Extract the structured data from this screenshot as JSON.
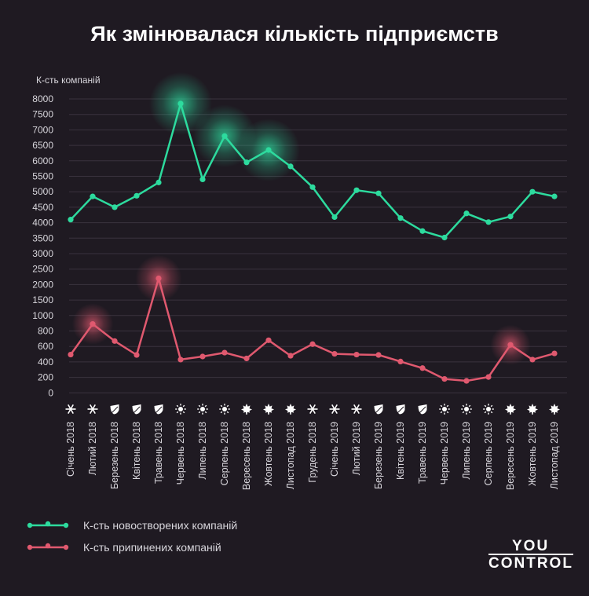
{
  "title": "Як змінювалася кількість підприємств",
  "legend": {
    "new": "К-сть новостворених компаній",
    "closed": "К-сть припинених компаній"
  },
  "logo": {
    "line1": "YOU",
    "line2": "CONTROL"
  },
  "colors": {
    "background": "#1f1a22",
    "new": "#2ddb9e",
    "closed": "#e0596f",
    "text": "#d8d6dc",
    "grid": "#3a333e"
  },
  "chart_data": {
    "type": "line",
    "ylabel": "К-сть компаній",
    "y_ticks": [
      0,
      200,
      400,
      600,
      800,
      1000,
      1500,
      2000,
      2500,
      3000,
      3500,
      4000,
      4500,
      5000,
      5500,
      6000,
      6500,
      7000,
      7500,
      8000
    ],
    "ylim": [
      0,
      8000
    ],
    "grid": true,
    "legend_position": "bottom-left",
    "categories": [
      "Січень 2018",
      "Лютий 2018",
      "Березень 2018",
      "Квітень 2018",
      "Травень 2018",
      "Червень 2018",
      "Липень 2018",
      "Серпень 2018",
      "Вересень 2018",
      "Жовтень 2018",
      "Листопад 2018",
      "Грудень 2018",
      "Січень 2019",
      "Лютий 2019",
      "Березень 2019",
      "Квітень 2019",
      "Травень 2019",
      "Червень 2019",
      "Липень 2019",
      "Серпень 2019",
      "Вересень 2019",
      "Жовтень 2019",
      "Листопад 2019"
    ],
    "season_icons": [
      "snowflake-icon",
      "snowflake-icon",
      "leaf-icon",
      "leaf-icon",
      "leaf-icon",
      "sun-icon",
      "sun-icon",
      "sun-icon",
      "maple-leaf-icon",
      "maple-leaf-icon",
      "maple-leaf-icon",
      "snowflake-icon",
      "snowflake-icon",
      "snowflake-icon",
      "leaf-icon",
      "leaf-icon",
      "leaf-icon",
      "sun-icon",
      "sun-icon",
      "sun-icon",
      "maple-leaf-icon",
      "maple-leaf-icon",
      "maple-leaf-icon"
    ],
    "series": [
      {
        "name": "К-сть новостворених компаній",
        "color": "#2ddb9e",
        "values": [
          4100,
          4850,
          4500,
          4870,
          5300,
          7850,
          5400,
          6800,
          5950,
          6350,
          5820,
          5150,
          4180,
          5050,
          4950,
          4150,
          3730,
          3520,
          4300,
          4020,
          4200,
          5000,
          4850
        ],
        "highlight": [
          5,
          7,
          9
        ]
      },
      {
        "name": "К-сть припинених компаній",
        "color": "#e0596f",
        "values": [
          495,
          890,
          670,
          490,
          2200,
          430,
          470,
          520,
          445,
          680,
          480,
          630,
          505,
          495,
          490,
          405,
          320,
          180,
          155,
          205,
          620,
          430,
          510
        ],
        "highlight": [
          1,
          4,
          20
        ]
      }
    ]
  }
}
